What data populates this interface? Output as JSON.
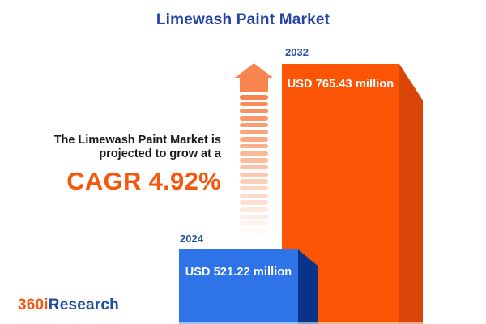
{
  "title": "Limewash Paint Market",
  "annotation": {
    "line1": "The Limewash Paint Market is",
    "line2": "projected to grow at a",
    "cagr_label": "CAGR 4.92%"
  },
  "chart_data": {
    "type": "bar",
    "title": "Limewash Paint Market",
    "unit": "USD million",
    "categories": [
      "2024",
      "2032"
    ],
    "values": [
      521.22,
      765.43
    ],
    "value_labels": [
      "USD 521.22 million",
      "USD 765.43 million"
    ],
    "cagr_percent": 4.92,
    "bar_colors": [
      "#2E74E8",
      "#FB5405"
    ],
    "bar_side_colors": [
      "#0A3387",
      "#D84507"
    ],
    "grid": false,
    "legend_position": "none"
  },
  "colors": {
    "title_blue": "#2342A7",
    "year_label_blue": "#2B51A8",
    "accent_orange": "#F4570E",
    "arrow_orange": "#F8854F",
    "annotation_text": "#1A1A1A",
    "background": "#FFFFFF"
  },
  "branding": {
    "logo_part1": "360i",
    "logo_part2": "Research"
  }
}
